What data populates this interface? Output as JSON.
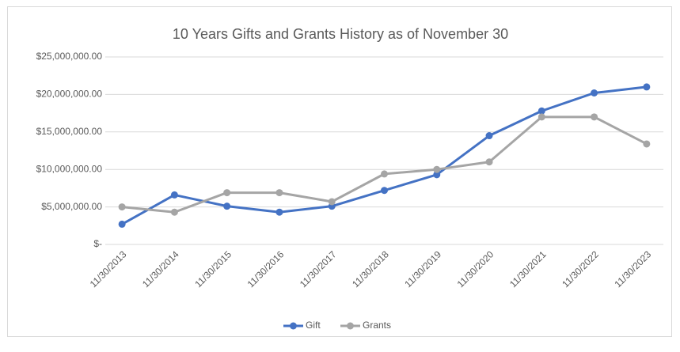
{
  "chart_data": {
    "type": "line",
    "title": "10 Years Gifts and Grants History as of November 30",
    "categories": [
      "11/30/2013",
      "11/30/2014",
      "11/30/2015",
      "11/30/2016",
      "11/30/2017",
      "11/30/2018",
      "11/30/2019",
      "11/30/2020",
      "11/30/2021",
      "11/30/2022",
      "11/30/2023"
    ],
    "series": [
      {
        "name": "Gift",
        "color": "#4472c4",
        "values": [
          2700000,
          6600000,
          5100000,
          4300000,
          5100000,
          7200000,
          9300000,
          14500000,
          17800000,
          20200000,
          21000000
        ]
      },
      {
        "name": "Grants",
        "color": "#a5a5a5",
        "values": [
          5000000,
          4300000,
          6900000,
          6900000,
          5700000,
          9400000,
          10000000,
          11000000,
          17000000,
          17000000,
          13400000
        ]
      }
    ],
    "ylim": [
      0,
      25000000
    ],
    "yticks": [
      {
        "value": 0,
        "label": "$-"
      },
      {
        "value": 5000000,
        "label": "$5,000,000.00"
      },
      {
        "value": 10000000,
        "label": "$10,000,000.00"
      },
      {
        "value": 15000000,
        "label": "$15,000,000.00"
      },
      {
        "value": 20000000,
        "label": "$20,000,000.00"
      },
      {
        "value": 25000000,
        "label": "$25,000,000.00"
      }
    ],
    "grid": true,
    "legend": "bottom"
  }
}
